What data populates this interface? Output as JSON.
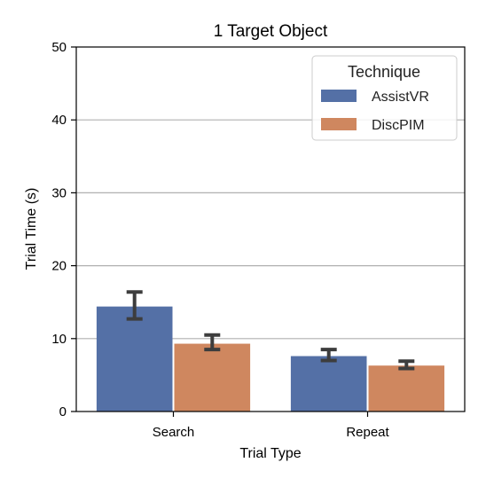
{
  "chart_data": {
    "type": "bar",
    "title": "1 Target Object",
    "xlabel": "Trial Type",
    "ylabel": "Trial Time (s)",
    "categories": [
      "Search",
      "Repeat"
    ],
    "ylim": [
      0,
      50
    ],
    "yticks": [
      0,
      10,
      20,
      30,
      40,
      50
    ],
    "grid": true,
    "legend": {
      "title": "Technique",
      "placement": "top-right"
    },
    "series": [
      {
        "name": "AssistVR",
        "color": "#5470a6",
        "values": [
          14.4,
          7.6
        ],
        "error_low": [
          12.7,
          7.0
        ],
        "error_high": [
          16.4,
          8.5
        ]
      },
      {
        "name": "DiscPIM",
        "color": "#cf875f",
        "values": [
          9.3,
          6.3
        ],
        "error_low": [
          8.5,
          5.9
        ],
        "error_high": [
          10.5,
          6.9
        ]
      }
    ]
  }
}
